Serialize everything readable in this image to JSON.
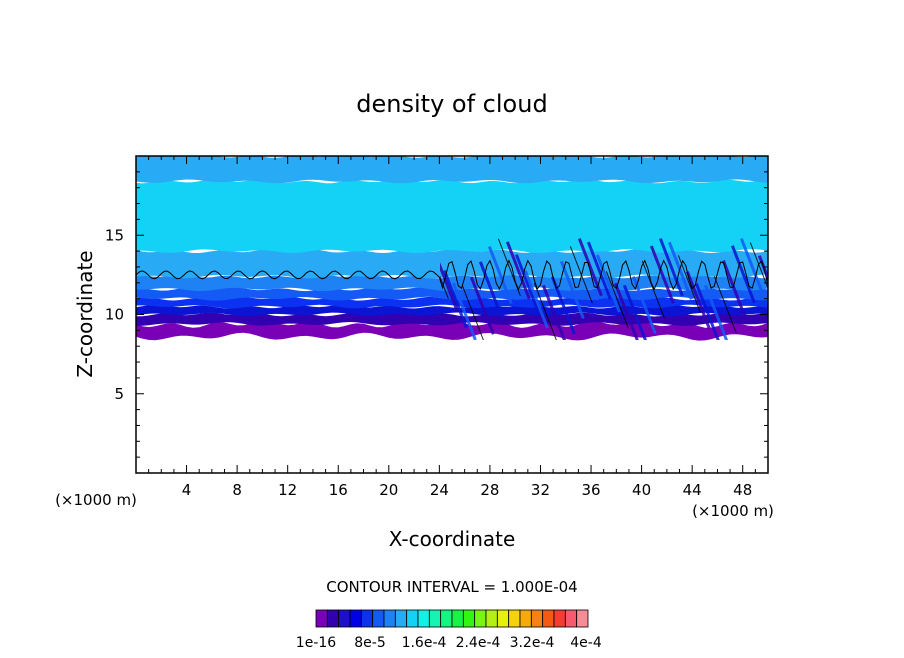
{
  "chart_data": {
    "type": "heatmap",
    "title": "density of cloud",
    "xlabel": "X-coordinate",
    "ylabel": "Z-coordinate",
    "x_unit_left": "(×1000 m)",
    "x_unit_right": "(×1000 m)",
    "xlim": [
      0,
      50
    ],
    "ylim": [
      0,
      20
    ],
    "x_ticks": [
      "4",
      "8",
      "12",
      "16",
      "20",
      "24",
      "28",
      "32",
      "36",
      "40",
      "44",
      "48"
    ],
    "y_ticks": [
      "5",
      "10",
      "15"
    ],
    "contour_interval_label": "CONTOUR INTERVAL = 1.000E-04",
    "colorbar_labels": [
      "1e-16",
      "8e-5",
      "1.6e-4",
      "2.4e-4",
      "3.2e-4",
      "4e-4"
    ],
    "colorbar_colors": [
      "#7a00b8",
      "#3200b0",
      "#1e10c8",
      "#0000e6",
      "#0a32f0",
      "#145af5",
      "#1e82f5",
      "#28aaf5",
      "#14d2f5",
      "#14f0e6",
      "#14f5b4",
      "#14f582",
      "#14f546",
      "#32f514",
      "#78f514",
      "#b4f014",
      "#e6f00a",
      "#f5d20a",
      "#f5aa0a",
      "#f58214",
      "#f55a14",
      "#f53c32",
      "#f55a6e",
      "#f58c96"
    ],
    "layers": [
      {
        "z_bottom": 8.6,
        "z_top": 9.4,
        "color": "#7a00b8"
      },
      {
        "z_bottom": 9.4,
        "z_top": 10.0,
        "color": "#3200b0"
      },
      {
        "z_bottom": 10.0,
        "z_top": 10.5,
        "color": "#0a14d2"
      },
      {
        "z_bottom": 10.5,
        "z_top": 11.0,
        "color": "#0a32f0"
      },
      {
        "z_bottom": 11.0,
        "z_top": 11.6,
        "color": "#145af5"
      },
      {
        "z_bottom": 11.6,
        "z_top": 12.4,
        "color": "#1e82f5"
      },
      {
        "z_bottom": 12.4,
        "z_top": 14.0,
        "color": "#28aaf5"
      },
      {
        "z_bottom": 14.0,
        "z_top": 18.4,
        "color": "#14d2f5"
      },
      {
        "z_bottom": 18.4,
        "z_top": 20.0,
        "color": "#28aaf5"
      }
    ],
    "contour_level_z": 12.5,
    "wave_region_x": [
      24,
      50
    ]
  }
}
